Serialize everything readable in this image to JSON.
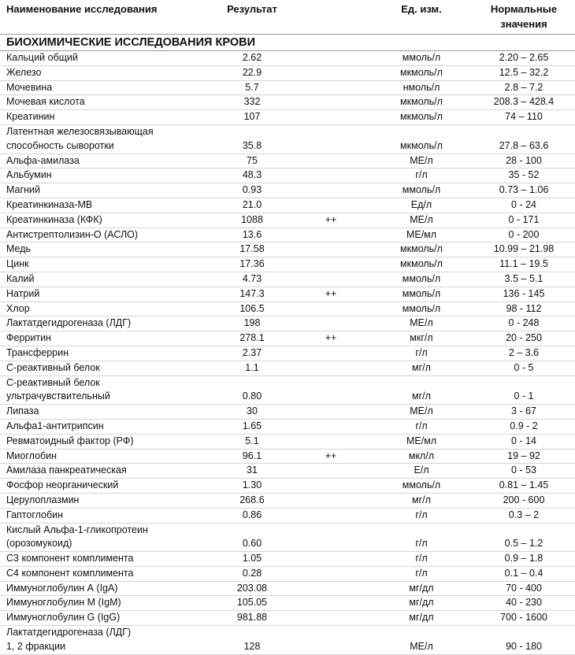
{
  "header": {
    "columns": [
      "Наименование исследования",
      "Результат",
      null,
      "Ед. изм.",
      [
        "Нормальные",
        "значения"
      ]
    ]
  },
  "section": "БИОХИМИЧЕСКИЕ ИССЛЕДОВАНИЯ КРОВИ",
  "table": {
    "rows": [
      [
        "Кальций общий",
        "2.62",
        null,
        "ммоль/л",
        "2.20 – 2.65"
      ],
      [
        "Железо",
        "22.9",
        null,
        "мкмоль/л",
        "12.5 – 32.2"
      ],
      [
        "Мочевина",
        "5.7",
        null,
        "нмоль/л",
        "2.8 – 7.2"
      ],
      [
        "Мочевая кислота",
        "332",
        null,
        "мкмоль/л",
        "208.3 – 428.4"
      ],
      [
        "Креатинин",
        "107",
        null,
        "мкмоль/л",
        "74 – 110"
      ],
      [
        [
          "Латентная железосвязывающая",
          "способность сыворотки"
        ],
        "35.8",
        null,
        "мкмоль/л",
        "27.8 – 63.6"
      ],
      [
        "Альфа-амилаза",
        "75",
        null,
        "МЕ/л",
        "28 - 100"
      ],
      [
        "Альбумин",
        "48.3",
        null,
        "г/л",
        "35 - 52"
      ],
      [
        "Магний",
        "0.93",
        null,
        "ммоль/л",
        "0.73 – 1.06"
      ],
      [
        "Креатинкиназа-МВ",
        "21.0",
        null,
        "Ед/л",
        "0 - 24"
      ],
      [
        "Креатинкиназа (КФК)",
        "1088",
        "++",
        "МЕ/л",
        "0 - 171"
      ],
      [
        "Антистрептолизин-О (АСЛО)",
        "13.6",
        null,
        "МЕ/мл",
        "0 - 200"
      ],
      [
        "Медь",
        "17.58",
        null,
        "мкмоль/л",
        "10.99 – 21.98"
      ],
      [
        "Цинк",
        "17.36",
        null,
        "мкмоль/л",
        "11.1 – 19.5"
      ],
      [
        "Калий",
        "4.73",
        null,
        "ммоль/л",
        "3.5 – 5.1"
      ],
      [
        "Натрий",
        "147.3",
        "++",
        "ммоль/л",
        "136 - 145"
      ],
      [
        "Хлор",
        "106.5",
        null,
        "ммоль/л",
        "98 - 112"
      ],
      [
        "Лактатдегидрогеназа (ЛДГ)",
        "198",
        null,
        "МЕ/л",
        "0 - 248"
      ],
      [
        "Ферритин",
        "278.1",
        "++",
        "мкг/л",
        "20 - 250"
      ],
      [
        "Трансферрин",
        "2.37",
        null,
        "г/л",
        "2 – 3.6"
      ],
      [
        "С-реактивный белок",
        "1.1",
        null,
        "мг/л",
        "0 - 5"
      ],
      [
        [
          "С-реактивный белок",
          "ультрачувствительный"
        ],
        "0.80",
        null,
        "мг/л",
        "0 - 1"
      ],
      [
        "Липаза",
        "30",
        null,
        "МЕ/л",
        "3 - 67"
      ],
      [
        "Альфа1-антитрипсин",
        "1.65",
        null,
        "г/л",
        "0.9 - 2"
      ],
      [
        "Ревматоидный фактор (РФ)",
        "5.1",
        null,
        "МЕ/мл",
        "0 - 14"
      ],
      [
        "Миоглобин",
        "96.1",
        "++",
        "мкл/л",
        "19 – 92"
      ],
      [
        "Амилаза панкреатическая",
        "31",
        null,
        "Е/л",
        "0 - 53"
      ],
      [
        "Фосфор неорганический",
        "1.30",
        null,
        "ммоль/л",
        "0.81 – 1.45"
      ],
      [
        "Церулоплазмин",
        "268.6",
        null,
        "мг/л",
        "200 - 600"
      ],
      [
        "Гаптоглобин",
        "0.86",
        null,
        "г/л",
        "0.3 – 2"
      ],
      [
        [
          "Кислый Альфа-1-гликопротеин",
          "(орозомукоид)"
        ],
        "0.60",
        null,
        "г/л",
        "0.5 – 1.2"
      ],
      [
        "С3 компонент комплимента",
        "1.05",
        null,
        "г/л",
        "0.9 – 1.8"
      ],
      [
        "С4 компонент комплимента",
        "0.28",
        null,
        "г/л",
        "0.1 – 0.4"
      ],
      [
        "Иммуноглобулин А (IgA)",
        "203.08",
        null,
        "мг/дл",
        "70 - 400"
      ],
      [
        "Иммуноглобулин M (IgM)",
        "105.05",
        null,
        "мг/дл",
        "40 - 230"
      ],
      [
        "Иммуноглобулин G (IgG)",
        "981.88",
        null,
        "мг/дл",
        "700 - 1600"
      ],
      [
        [
          "Лактатдегидрогеназа (ЛДГ)",
          "1, 2 фракции"
        ],
        "128",
        null,
        "МЕ/л",
        "90 - 180"
      ]
    ]
  }
}
